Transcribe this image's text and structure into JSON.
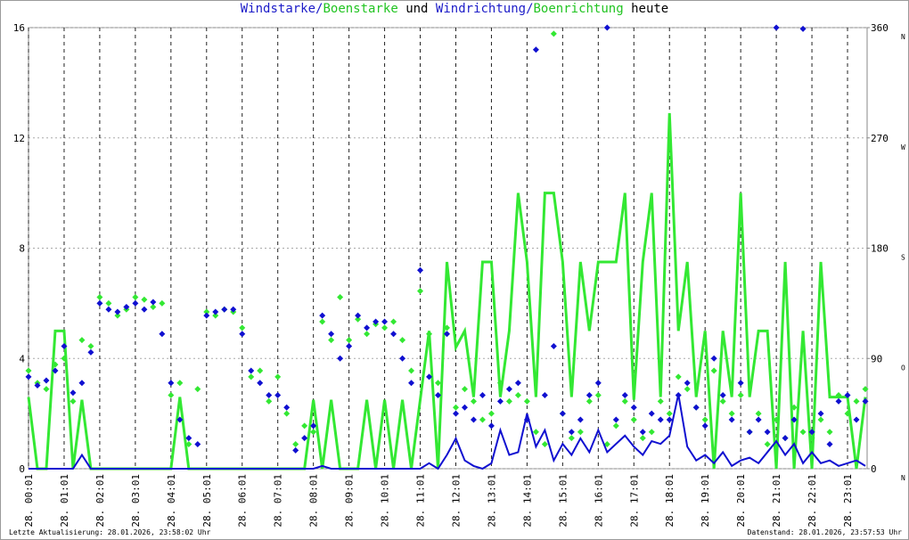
{
  "chart_data": {
    "type": "wind",
    "title_parts": [
      {
        "text": "Windstarke/",
        "color": "#1c1cc8"
      },
      {
        "text": "Boenstarke",
        "color": "#22c422"
      },
      {
        "text": " und ",
        "color": "#000000"
      },
      {
        "text": "Windrichtung/",
        "color": "#1c1cc8"
      },
      {
        "text": "Boenrichtung",
        "color": "#22c422"
      },
      {
        "text": " heute",
        "color": "#000000"
      }
    ],
    "footer_left": "Letzte Aktualisierung: 28.01.2026, 23:58:02 Uhr",
    "footer_right": "Datenstand: 28.01.2026, 23:57:53 Uhr",
    "xlim": [
      0,
      23.55
    ],
    "xticks": [
      {
        "value": 0,
        "label": "28. 00:01"
      },
      {
        "value": 1,
        "label": "28. 01:01"
      },
      {
        "value": 2,
        "label": "28. 02:01"
      },
      {
        "value": 3,
        "label": "28. 03:01"
      },
      {
        "value": 4,
        "label": "28. 04:01"
      },
      {
        "value": 5,
        "label": "28. 05:01"
      },
      {
        "value": 6,
        "label": "28. 06:01"
      },
      {
        "value": 7,
        "label": "28. 07:01"
      },
      {
        "value": 8,
        "label": "28. 08:01"
      },
      {
        "value": 9,
        "label": "28. 09:01"
      },
      {
        "value": 10,
        "label": "28. 10:01"
      },
      {
        "value": 11,
        "label": "28. 11:01"
      },
      {
        "value": 12,
        "label": "28. 12:01"
      },
      {
        "value": 13,
        "label": "28. 13:01"
      },
      {
        "value": 14,
        "label": "28. 14:01"
      },
      {
        "value": 15,
        "label": "28. 15:01"
      },
      {
        "value": 16,
        "label": "28. 16:01"
      },
      {
        "value": 17,
        "label": "28. 17:01"
      },
      {
        "value": 18,
        "label": "28. 18:01"
      },
      {
        "value": 19,
        "label": "28. 19:01"
      },
      {
        "value": 20,
        "label": "28. 20:01"
      },
      {
        "value": 21,
        "label": "28. 21:01"
      },
      {
        "value": 22,
        "label": "28. 22:01"
      },
      {
        "value": 23,
        "label": "28. 23:01"
      }
    ],
    "ylim": [
      0,
      16
    ],
    "yticks": [
      0,
      4,
      8,
      12,
      16
    ],
    "y2lim": [
      0,
      360
    ],
    "y2ticks": [
      0,
      90,
      180,
      270,
      360
    ],
    "y2_compass": [
      "N",
      "O",
      "S",
      "W",
      "N"
    ],
    "grid": true,
    "x": [
      0,
      0.25,
      0.5,
      0.75,
      1,
      1.25,
      1.5,
      1.75,
      2,
      2.25,
      2.5,
      2.75,
      3,
      3.25,
      3.5,
      3.75,
      4,
      4.25,
      4.5,
      4.75,
      5,
      5.25,
      5.5,
      5.75,
      6,
      6.25,
      6.5,
      6.75,
      7,
      7.25,
      7.5,
      7.75,
      8,
      8.25,
      8.5,
      8.75,
      9,
      9.25,
      9.5,
      9.75,
      10,
      10.25,
      10.5,
      10.75,
      11,
      11.25,
      11.5,
      11.75,
      12,
      12.25,
      12.5,
      12.75,
      13,
      13.25,
      13.5,
      13.75,
      14,
      14.25,
      14.5,
      14.75,
      15,
      15.25,
      15.5,
      15.75,
      16,
      16.25,
      16.5,
      16.75,
      17,
      17.25,
      17.5,
      17.75,
      18,
      18.25,
      18.5,
      18.75,
      19,
      19.25,
      19.5,
      19.75,
      20,
      20.25,
      20.5,
      20.75,
      21,
      21.25,
      21.5,
      21.75,
      22,
      22.25,
      22.5,
      22.75,
      23,
      23.25,
      23.5
    ],
    "series": [
      {
        "style": "line",
        "color": "#33e833",
        "values": [
          2.6,
          0,
          0,
          5,
          5,
          0,
          2.5,
          0,
          0,
          0,
          0,
          0,
          0,
          0,
          0,
          0,
          0,
          2.6,
          0,
          0,
          0,
          0,
          0,
          0,
          0,
          0,
          0,
          0,
          0,
          0,
          0,
          0,
          2.5,
          0,
          2.5,
          0,
          0,
          0,
          2.5,
          0,
          2.5,
          0,
          2.5,
          0,
          2.5,
          5,
          0,
          7.5,
          4.4,
          5,
          2.6,
          7.5,
          7.5,
          2.6,
          5,
          10,
          7.5,
          2.6,
          10,
          10,
          7.5,
          2.6,
          7.5,
          5,
          7.5,
          7.5,
          7.5,
          10,
          2.5,
          7.5,
          10,
          2.6,
          12.9,
          5,
          7.5,
          2.6,
          5,
          0,
          5,
          2.6,
          10,
          2.6,
          5,
          5,
          0,
          7.5,
          0,
          5,
          0,
          7.5,
          2.6,
          2.6,
          2.6,
          0,
          2.6
        ]
      },
      {
        "style": "points",
        "axis": "y2",
        "color": "#33e833",
        "values": [
          80,
          70,
          65,
          85,
          90,
          55,
          105,
          100,
          140,
          135,
          125,
          130,
          140,
          138,
          132,
          135,
          60,
          70,
          20,
          65,
          128,
          125,
          130,
          128,
          115,
          75,
          80,
          55,
          75,
          45,
          20,
          35,
          30,
          120,
          105,
          140,
          105,
          122,
          110,
          118,
          115,
          120,
          105,
          80,
          145,
          110,
          70,
          115,
          50,
          65,
          55,
          40,
          45,
          70,
          55,
          60,
          55,
          30,
          20,
          355,
          45,
          25,
          30,
          55,
          60,
          20,
          35,
          55,
          40,
          25,
          30,
          55,
          45,
          75,
          65,
          50,
          40,
          80,
          55,
          45,
          60,
          30,
          45,
          20,
          40,
          25,
          50,
          30,
          25,
          40,
          30,
          60,
          45,
          55,
          65
        ]
      },
      {
        "style": "points",
        "axis": "y2",
        "color": "#1010d0",
        "values": [
          75,
          68,
          72,
          80,
          100,
          62,
          70,
          95,
          135,
          130,
          128,
          132,
          135,
          130,
          136,
          110,
          70,
          40,
          25,
          20,
          125,
          128,
          130,
          130,
          110,
          80,
          70,
          60,
          60,
          50,
          15,
          25,
          35,
          125,
          110,
          90,
          100,
          125,
          115,
          120,
          120,
          110,
          90,
          70,
          162,
          75,
          60,
          110,
          45,
          50,
          40,
          60,
          35,
          55,
          65,
          70,
          40,
          342,
          60,
          100,
          45,
          30,
          40,
          60,
          70,
          360,
          40,
          60,
          50,
          30,
          45,
          40,
          40,
          60,
          70,
          50,
          35,
          90,
          60,
          40,
          70,
          30,
          40,
          30,
          360,
          25,
          40,
          359,
          30,
          45,
          20,
          55,
          60,
          40,
          55
        ]
      },
      {
        "style": "line",
        "color": "#1010d0",
        "values": [
          0,
          0,
          0,
          0,
          0,
          0,
          0.5,
          0,
          0,
          0,
          0,
          0,
          0,
          0,
          0,
          0,
          0,
          0,
          0,
          0,
          0,
          0,
          0,
          0,
          0,
          0,
          0,
          0,
          0,
          0,
          0,
          0,
          0,
          0.1,
          0,
          0,
          0,
          0,
          0,
          0,
          0,
          0,
          0,
          0,
          0,
          0.2,
          0,
          0.5,
          1.1,
          0.3,
          0.1,
          0,
          0.2,
          1.4,
          0.5,
          0.6,
          2.0,
          0.8,
          1.4,
          0.3,
          0.9,
          0.5,
          1.1,
          0.6,
          1.4,
          0.6,
          0.9,
          1.2,
          0.8,
          0.5,
          1.0,
          0.9,
          1.2,
          2.7,
          0.8,
          0.3,
          0.5,
          0.2,
          0.6,
          0.1,
          0.3,
          0.4,
          0.2,
          0.6,
          1.0,
          0.5,
          0.9,
          0.2,
          0.6,
          0.2,
          0.3,
          0.1,
          0.2,
          0.3,
          0.1
        ]
      }
    ]
  }
}
